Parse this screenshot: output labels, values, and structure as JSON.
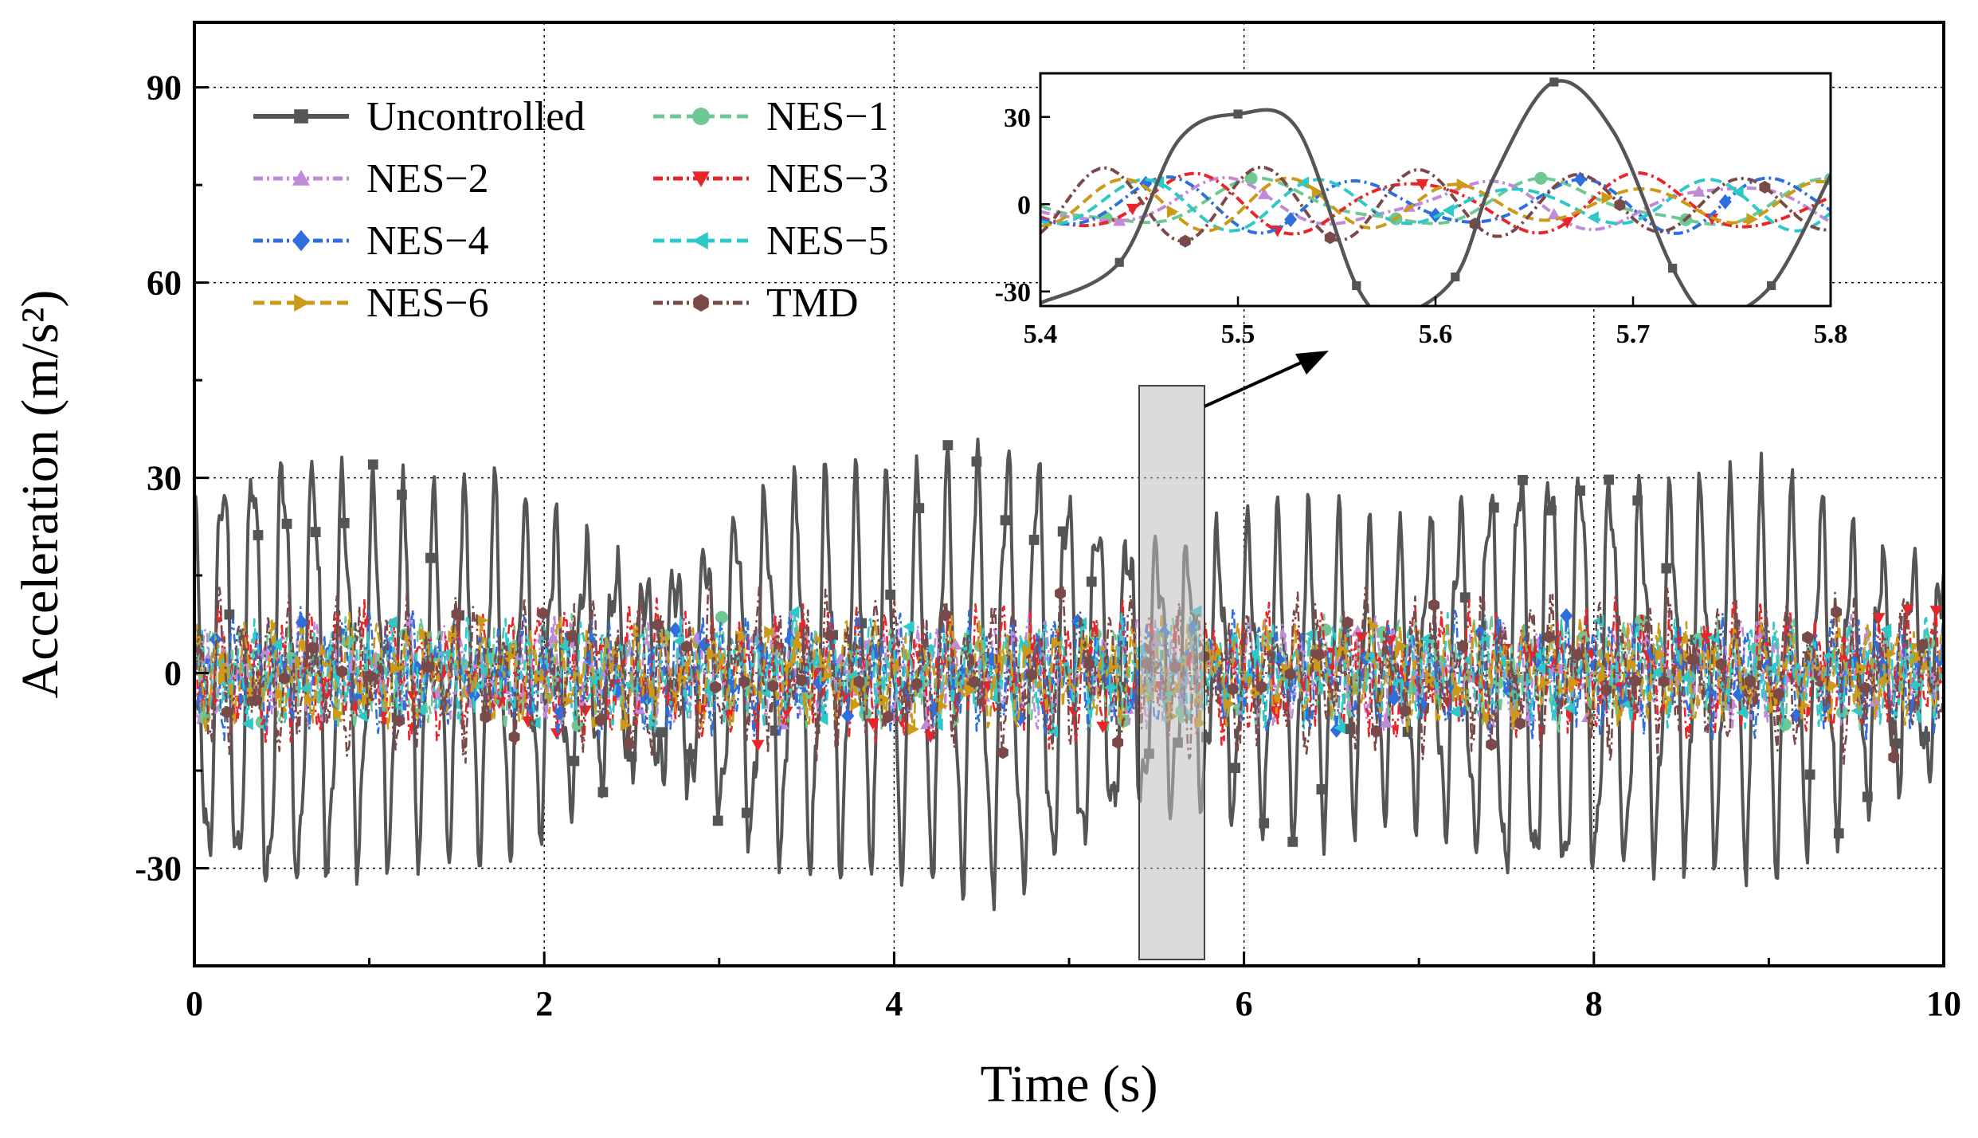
{
  "chart_data": {
    "type": "line",
    "xlabel": "Time (s)",
    "ylabel": "Acceleration (m/s²)",
    "xlim": [
      0,
      10
    ],
    "ylim": [
      -45,
      100
    ],
    "x_ticks": [
      "0",
      "2",
      "4",
      "6",
      "8",
      "10"
    ],
    "y_ticks": [
      "-30",
      "0",
      "30",
      "60",
      "90"
    ],
    "grid": true,
    "legend_position": "top-left",
    "series": [
      {
        "name": "Uncontrolled",
        "color": "#555555",
        "marker": "square",
        "style": "solid",
        "amplitude": 30,
        "dominant_freq_hz": 5.8
      },
      {
        "name": "NES−1",
        "color": "#6fc894",
        "marker": "circle",
        "style": "dash",
        "amplitude": 8
      },
      {
        "name": "NES−2",
        "color": "#c08ad8",
        "marker": "triangle-up",
        "style": "dashdot",
        "amplitude": 8
      },
      {
        "name": "NES−3",
        "color": "#e8262a",
        "marker": "triangle-down",
        "style": "dashdot",
        "amplitude": 10
      },
      {
        "name": "NES−4",
        "color": "#2f6fdd",
        "marker": "diamond",
        "style": "dashdot",
        "amplitude": 9
      },
      {
        "name": "NES−5",
        "color": "#2fc8c8",
        "marker": "triangle-left",
        "style": "dash",
        "amplitude": 8
      },
      {
        "name": "NES−6",
        "color": "#cc9a16",
        "marker": "triangle-right",
        "style": "dash",
        "amplitude": 8
      },
      {
        "name": "TMD",
        "color": "#7a4a4a",
        "marker": "hexagon",
        "style": "dashdot",
        "amplitude": 12
      }
    ],
    "inset": {
      "xlim": [
        5.4,
        5.8
      ],
      "ylim": [
        -35,
        45
      ],
      "x_ticks": [
        "5.4",
        "5.5",
        "5.6",
        "5.7",
        "5.8"
      ],
      "y_ticks": [
        "-30",
        "0",
        "30"
      ],
      "uncontrolled_points": [
        [
          5.4,
          -34
        ],
        [
          5.44,
          -20
        ],
        [
          5.47,
          22
        ],
        [
          5.5,
          31
        ],
        [
          5.53,
          26
        ],
        [
          5.56,
          -28
        ],
        [
          5.58,
          -38
        ],
        [
          5.61,
          -25
        ],
        [
          5.63,
          10
        ],
        [
          5.66,
          42
        ],
        [
          5.69,
          25
        ],
        [
          5.72,
          -22
        ],
        [
          5.74,
          -38
        ],
        [
          5.77,
          -28
        ],
        [
          5.8,
          10
        ]
      ]
    }
  }
}
